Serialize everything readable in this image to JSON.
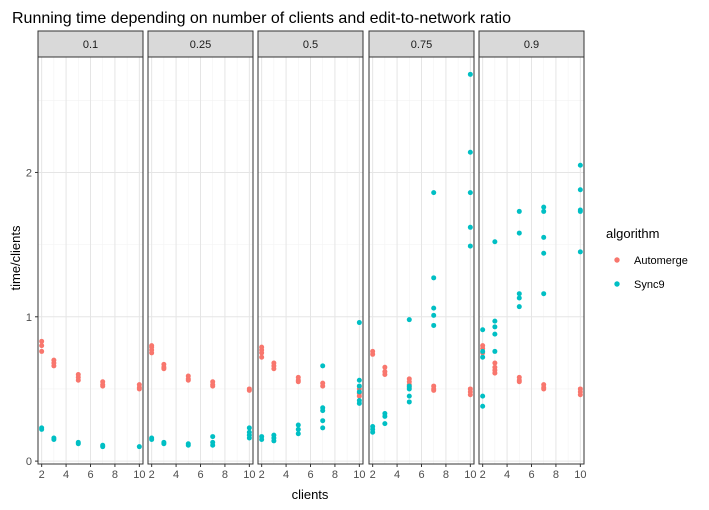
{
  "chart_data": {
    "type": "scatter",
    "title": "Running time depending on number of clients and edit-to-network ratio",
    "xlabel": "clients",
    "ylabel": "time/clients",
    "facet_labels": [
      "0.1",
      "0.25",
      "0.5",
      "0.75",
      "0.9"
    ],
    "xlim": [
      1.7,
      10.3
    ],
    "ylim": [
      -0.02,
      2.8
    ],
    "x_ticks": [
      2,
      4,
      6,
      8,
      10
    ],
    "y_ticks": [
      0,
      1,
      2
    ],
    "grid": true,
    "legend": {
      "title": "algorithm",
      "position": "right",
      "entries": [
        {
          "name": "Automerge",
          "color": "#F8766D"
        },
        {
          "name": "Sync9",
          "color": "#00BFC4"
        }
      ]
    },
    "series": [
      {
        "name": "Automerge",
        "color": "#F8766D",
        "panels": [
          {
            "facet": "0.1",
            "points": [
              [
                2,
                0.83
              ],
              [
                2,
                0.8
              ],
              [
                2,
                0.76
              ],
              [
                3,
                0.7
              ],
              [
                3,
                0.68
              ],
              [
                3,
                0.66
              ],
              [
                5,
                0.6
              ],
              [
                5,
                0.58
              ],
              [
                5,
                0.56
              ],
              [
                7,
                0.55
              ],
              [
                7,
                0.53
              ],
              [
                7,
                0.52
              ],
              [
                10,
                0.53
              ],
              [
                10,
                0.51
              ],
              [
                10,
                0.5
              ]
            ]
          },
          {
            "facet": "0.25",
            "points": [
              [
                2,
                0.8
              ],
              [
                2,
                0.79
              ],
              [
                2,
                0.77
              ],
              [
                2,
                0.75
              ],
              [
                3,
                0.67
              ],
              [
                3,
                0.65
              ],
              [
                3,
                0.64
              ],
              [
                5,
                0.59
              ],
              [
                5,
                0.57
              ],
              [
                5,
                0.56
              ],
              [
                7,
                0.55
              ],
              [
                7,
                0.53
              ],
              [
                7,
                0.52
              ],
              [
                10,
                0.5
              ],
              [
                10,
                0.49
              ]
            ]
          },
          {
            "facet": "0.5",
            "points": [
              [
                2,
                0.79
              ],
              [
                2,
                0.77
              ],
              [
                2,
                0.75
              ],
              [
                2,
                0.72
              ],
              [
                3,
                0.68
              ],
              [
                3,
                0.66
              ],
              [
                3,
                0.64
              ],
              [
                5,
                0.58
              ],
              [
                5,
                0.56
              ],
              [
                5,
                0.55
              ],
              [
                7,
                0.54
              ],
              [
                7,
                0.52
              ],
              [
                10,
                0.5
              ],
              [
                10,
                0.47
              ],
              [
                10,
                0.45
              ]
            ]
          },
          {
            "facet": "0.75",
            "points": [
              [
                2,
                0.76
              ],
              [
                2,
                0.74
              ],
              [
                3,
                0.65
              ],
              [
                3,
                0.62
              ],
              [
                3,
                0.6
              ],
              [
                5,
                0.57
              ],
              [
                5,
                0.55
              ],
              [
                5,
                0.53
              ],
              [
                5,
                0.51
              ],
              [
                7,
                0.52
              ],
              [
                7,
                0.5
              ],
              [
                7,
                0.49
              ],
              [
                10,
                0.5
              ],
              [
                10,
                0.48
              ],
              [
                10,
                0.46
              ]
            ]
          },
          {
            "facet": "0.9",
            "points": [
              [
                2,
                0.8
              ],
              [
                2,
                0.78
              ],
              [
                2,
                0.75
              ],
              [
                3,
                0.68
              ],
              [
                3,
                0.65
              ],
              [
                3,
                0.63
              ],
              [
                3,
                0.61
              ],
              [
                5,
                0.58
              ],
              [
                5,
                0.56
              ],
              [
                5,
                0.55
              ],
              [
                7,
                0.53
              ],
              [
                7,
                0.51
              ],
              [
                7,
                0.5
              ],
              [
                10,
                0.5
              ],
              [
                10,
                0.48
              ],
              [
                10,
                0.46
              ]
            ]
          }
        ]
      },
      {
        "name": "Sync9",
        "color": "#00BFC4",
        "panels": [
          {
            "facet": "0.1",
            "points": [
              [
                2,
                0.23
              ],
              [
                2,
                0.22
              ],
              [
                3,
                0.16
              ],
              [
                3,
                0.15
              ],
              [
                5,
                0.13
              ],
              [
                5,
                0.12
              ],
              [
                7,
                0.11
              ],
              [
                7,
                0.1
              ],
              [
                10,
                0.1
              ]
            ]
          },
          {
            "facet": "0.25",
            "points": [
              [
                2,
                0.16
              ],
              [
                2,
                0.15
              ],
              [
                3,
                0.13
              ],
              [
                3,
                0.12
              ],
              [
                5,
                0.12
              ],
              [
                5,
                0.11
              ],
              [
                7,
                0.17
              ],
              [
                7,
                0.13
              ],
              [
                7,
                0.11
              ],
              [
                10,
                0.23
              ],
              [
                10,
                0.2
              ],
              [
                10,
                0.18
              ],
              [
                10,
                0.16
              ]
            ]
          },
          {
            "facet": "0.5",
            "points": [
              [
                2,
                0.17
              ],
              [
                2,
                0.15
              ],
              [
                3,
                0.18
              ],
              [
                3,
                0.16
              ],
              [
                3,
                0.14
              ],
              [
                5,
                0.25
              ],
              [
                5,
                0.22
              ],
              [
                5,
                0.19
              ],
              [
                7,
                0.66
              ],
              [
                7,
                0.37
              ],
              [
                7,
                0.35
              ],
              [
                7,
                0.28
              ],
              [
                7,
                0.23
              ],
              [
                10,
                0.96
              ],
              [
                10,
                0.56
              ],
              [
                10,
                0.52
              ],
              [
                10,
                0.48
              ],
              [
                10,
                0.42
              ],
              [
                10,
                0.4
              ]
            ]
          },
          {
            "facet": "0.75",
            "points": [
              [
                2,
                0.24
              ],
              [
                2,
                0.22
              ],
              [
                2,
                0.2
              ],
              [
                3,
                0.33
              ],
              [
                3,
                0.31
              ],
              [
                3,
                0.26
              ],
              [
                5,
                0.98
              ],
              [
                5,
                0.52
              ],
              [
                5,
                0.5
              ],
              [
                5,
                0.45
              ],
              [
                5,
                0.41
              ],
              [
                7,
                1.86
              ],
              [
                7,
                1.27
              ],
              [
                7,
                1.06
              ],
              [
                7,
                1.01
              ],
              [
                7,
                0.94
              ],
              [
                10,
                2.68
              ],
              [
                10,
                2.14
              ],
              [
                10,
                1.86
              ],
              [
                10,
                1.62
              ],
              [
                10,
                1.49
              ]
            ]
          },
          {
            "facet": "0.9",
            "points": [
              [
                2,
                0.91
              ],
              [
                2,
                0.76
              ],
              [
                2,
                0.72
              ],
              [
                2,
                0.45
              ],
              [
                2,
                0.38
              ],
              [
                3,
                1.52
              ],
              [
                3,
                0.97
              ],
              [
                3,
                0.93
              ],
              [
                3,
                0.88
              ],
              [
                3,
                0.76
              ],
              [
                5,
                1.73
              ],
              [
                5,
                1.58
              ],
              [
                5,
                1.16
              ],
              [
                5,
                1.13
              ],
              [
                5,
                1.07
              ],
              [
                7,
                1.76
              ],
              [
                7,
                1.73
              ],
              [
                7,
                1.55
              ],
              [
                7,
                1.44
              ],
              [
                7,
                1.16
              ],
              [
                10,
                2.05
              ],
              [
                10,
                1.88
              ],
              [
                10,
                1.74
              ],
              [
                10,
                1.73
              ],
              [
                10,
                1.45
              ]
            ]
          }
        ]
      }
    ]
  }
}
